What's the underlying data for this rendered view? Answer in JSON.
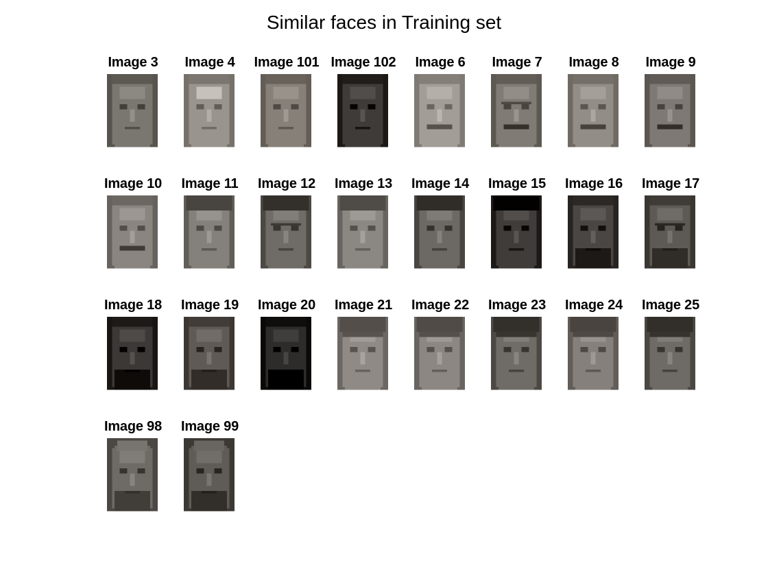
{
  "title": "Similar faces in Training set",
  "images": [
    {
      "label": "Image 3",
      "tone": "#7a7670",
      "features": "light"
    },
    {
      "label": "Image 4",
      "tone": "#9a948e",
      "features": "bright"
    },
    {
      "label": "Image 101",
      "tone": "#868079",
      "features": "light"
    },
    {
      "label": "Image 102",
      "tone": "#3e3b38",
      "features": "dark"
    },
    {
      "label": "Image 6",
      "tone": "#a29d97",
      "features": "moustache"
    },
    {
      "label": "Image 7",
      "tone": "#807b75",
      "features": "moustache-glasses"
    },
    {
      "label": "Image 8",
      "tone": "#928d86",
      "features": "moustache"
    },
    {
      "label": "Image 9",
      "tone": "#7e7974",
      "features": "moustache"
    },
    {
      "label": "Image 10",
      "tone": "#8a8580",
      "features": "moustache"
    },
    {
      "label": "Image 11",
      "tone": "#84807b",
      "features": "dark-hair"
    },
    {
      "label": "Image 12",
      "tone": "#6f6b67",
      "features": "glasses"
    },
    {
      "label": "Image 13",
      "tone": "#8b8782",
      "features": "dark-hair"
    },
    {
      "label": "Image 14",
      "tone": "#6c6864",
      "features": "dark-hair"
    },
    {
      "label": "Image 15",
      "tone": "#3f3c39",
      "features": "dark-hair"
    },
    {
      "label": "Image 16",
      "tone": "#4a4643",
      "features": "beard"
    },
    {
      "label": "Image 17",
      "tone": "#5d5955",
      "features": "beard-glasses"
    },
    {
      "label": "Image 18",
      "tone": "#3b3835",
      "features": "beard"
    },
    {
      "label": "Image 19",
      "tone": "#5f5a56",
      "features": "beard"
    },
    {
      "label": "Image 20",
      "tone": "#2e2c2a",
      "features": "beard"
    },
    {
      "label": "Image 21",
      "tone": "#8f8a85",
      "features": "bangs"
    },
    {
      "label": "Image 22",
      "tone": "#8c8782",
      "features": "bangs"
    },
    {
      "label": "Image 23",
      "tone": "#6f6b66",
      "features": "bangs"
    },
    {
      "label": "Image 24",
      "tone": "#85807b",
      "features": "bangs"
    },
    {
      "label": "Image 25",
      "tone": "#6e6a66",
      "features": "bangs"
    },
    {
      "label": "Image 98",
      "tone": "#6e6a66",
      "features": "bald-beard"
    },
    {
      "label": "Image 99",
      "tone": "#5f5b57",
      "features": "bald-beard"
    }
  ]
}
